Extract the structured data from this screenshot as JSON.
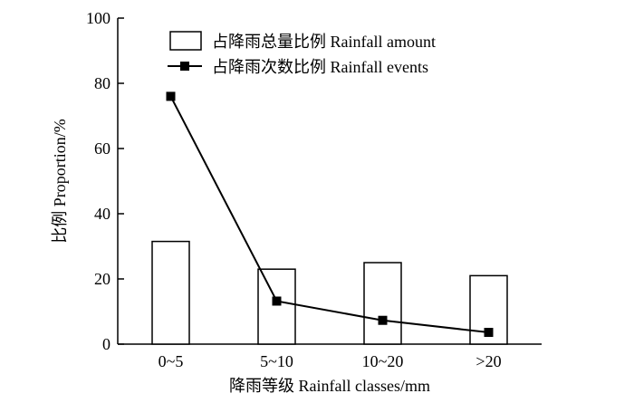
{
  "chart_data": {
    "type": "bar",
    "categories": [
      "0~5",
      "5~10",
      "10~20",
      ">20"
    ],
    "series": [
      {
        "name": "占降雨总量比例 Rainfall amount",
        "kind": "bar",
        "values": [
          31.5,
          23,
          25,
          21
        ]
      },
      {
        "name": "占降雨次数比例 Rainfall events",
        "kind": "line",
        "values": [
          76,
          13.2,
          7.3,
          3.6
        ]
      }
    ],
    "xlabel": "降雨等级  Rainfall classes/mm",
    "ylabel": "比例 Proportion/%",
    "ylim": [
      0,
      100
    ],
    "yticks": [
      0,
      20,
      40,
      60,
      80,
      100
    ],
    "legend_position": "top-right",
    "grid": false
  }
}
